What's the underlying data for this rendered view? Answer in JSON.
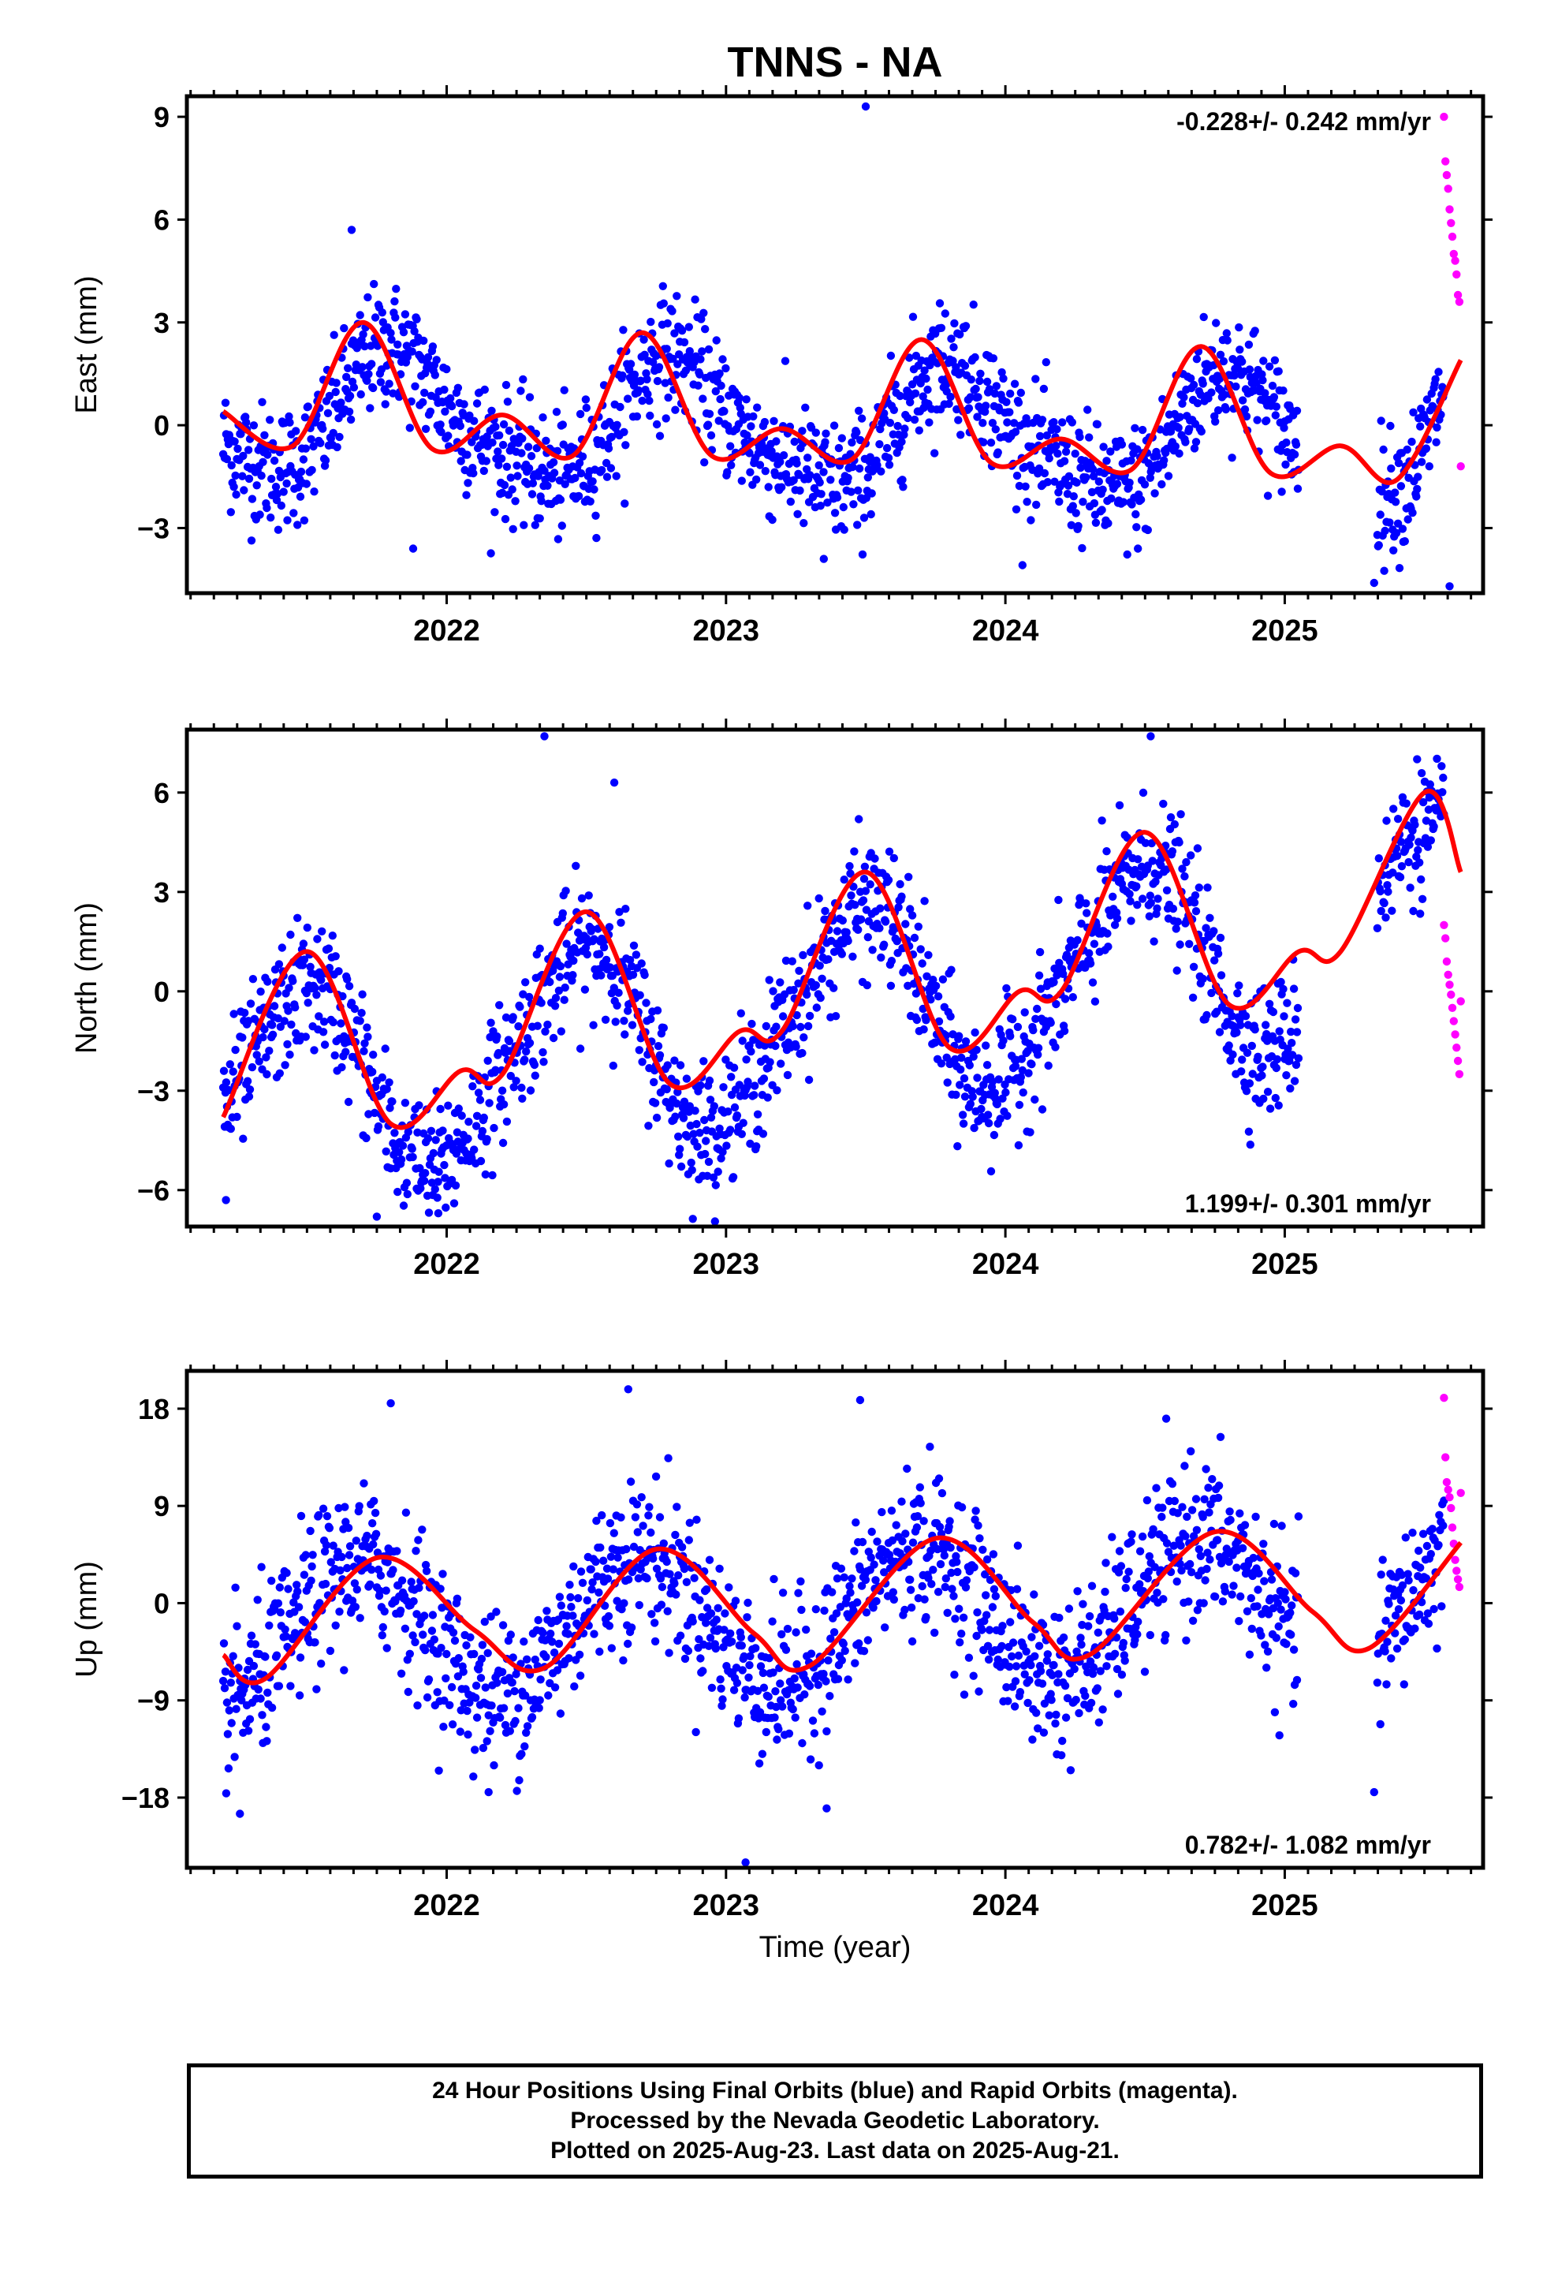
{
  "title": "TNNS - NA",
  "xlabel": "Time (year)",
  "year_ticks": [
    "2022",
    "2023",
    "2024",
    "2025"
  ],
  "colors": {
    "final": "#0000ff",
    "rapid": "#ff00ff",
    "model": "#ff0000",
    "frame": "#000000"
  },
  "footer": {
    "line1": "24 Hour Positions Using Final Orbits (blue) and Rapid Orbits (magenta).",
    "line2": "Processed by the Nevada Geodetic Laboratory.",
    "line3": "Plotted on 2025-Aug-23. Last data on 2025-Aug-21."
  },
  "chart_data": [
    {
      "type": "scatter",
      "ylabel": "East (mm)",
      "ylim": [
        -4.9,
        9.6
      ],
      "xlim": [
        2021.07,
        2025.71
      ],
      "yticks": [
        -3,
        0,
        3,
        6,
        9
      ],
      "rate_text": "-0.228+/- 0.242 mm/yr",
      "rate_position": "top-right",
      "final_range": [
        2021.2,
        2025.63
      ],
      "gap": [
        2025.05,
        2025.33
      ],
      "noise_sd": 0.9,
      "model": {
        "offset": -0.02,
        "rate": -0.228,
        "annual_cos": 0.76,
        "annual_sin": -1.56,
        "semi_cos": -0.4,
        "semi_sin": -0.05,
        "tail_start": 2025.3,
        "tail_amp": 3.2
      },
      "model_curve_x": [
        2021.2,
        2021.45,
        2021.7,
        2021.95,
        2022.2,
        2022.45,
        2022.7,
        2022.95,
        2023.2,
        2023.45,
        2023.7,
        2023.95,
        2024.2,
        2024.45,
        2024.7,
        2024.95,
        2025.2,
        2025.4,
        2025.63
      ],
      "model_curve_y": [
        0.4,
        -0.6,
        3.0,
        -0.7,
        0.3,
        -0.9,
        2.7,
        -0.9,
        -0.1,
        -1.0,
        2.5,
        -1.1,
        -0.4,
        -1.3,
        2.3,
        -1.4,
        -0.6,
        -1.6,
        1.9
      ],
      "rapid_x": [
        2025.57,
        2025.575,
        2025.58,
        2025.585,
        2025.59,
        2025.595,
        2025.6,
        2025.605,
        2025.61,
        2025.615,
        2025.62,
        2025.625,
        2025.63
      ],
      "rapid_y": [
        9.0,
        7.7,
        7.3,
        6.9,
        6.3,
        5.9,
        5.5,
        5.0,
        4.8,
        4.4,
        3.8,
        3.6,
        -1.2
      ],
      "outliers": [
        [
          2021.66,
          5.7
        ],
        [
          2023.5,
          9.3
        ],
        [
          2025.32,
          -4.6
        ],
        [
          2025.59,
          -4.7
        ],
        [
          2021.88,
          -3.6
        ],
        [
          2023.35,
          -3.9
        ]
      ]
    },
    {
      "type": "scatter",
      "ylabel": "North (mm)",
      "ylim": [
        -7.1,
        7.9
      ],
      "xlim": [
        2021.07,
        2025.71
      ],
      "yticks": [
        -6,
        -3,
        0,
        3,
        6
      ],
      "rate_text": "1.199+/- 0.301 mm/yr",
      "rate_position": "bottom-right",
      "final_range": [
        2021.2,
        2025.63
      ],
      "gap": [
        2025.05,
        2025.33
      ],
      "noise_sd": 1.0,
      "model": {
        "offset": -1.1,
        "rate": 1.199,
        "annual_cos": -2.9,
        "annual_sin": 0.5,
        "semi_cos": 0.15,
        "semi_sin": 0.35,
        "tail_start": 2025.9,
        "tail_amp": 0
      },
      "model_curve_x": [
        2021.2,
        2021.5,
        2021.8,
        2022.05,
        2022.2,
        2022.5,
        2022.8,
        2023.05,
        2023.2,
        2023.5,
        2023.8,
        2024.05,
        2024.2,
        2024.5,
        2024.8,
        2025.05,
        2025.2,
        2025.5,
        2025.63
      ],
      "model_curve_y": [
        -3.8,
        1.2,
        -4.0,
        -2.4,
        -2.5,
        2.4,
        -2.8,
        -1.2,
        -1.2,
        3.6,
        -1.7,
        0.0,
        0.0,
        4.8,
        -0.4,
        1.2,
        1.2,
        6.0,
        3.6
      ],
      "rapid_x": [
        2025.57,
        2025.575,
        2025.58,
        2025.585,
        2025.59,
        2025.595,
        2025.6,
        2025.605,
        2025.61,
        2025.615,
        2025.62,
        2025.625,
        2025.63
      ],
      "rapid_y": [
        2.0,
        1.6,
        0.9,
        0.5,
        0.2,
        -0.1,
        -0.5,
        -0.9,
        -1.3,
        -1.7,
        -2.1,
        -2.5,
        -0.3
      ],
      "outliers": [
        [
          2022.35,
          7.7
        ],
        [
          2024.52,
          7.7
        ],
        [
          2021.75,
          -6.8
        ],
        [
          2021.97,
          -6.7
        ],
        [
          2021.21,
          -6.3
        ],
        [
          2022.6,
          6.3
        ]
      ]
    },
    {
      "type": "scatter",
      "ylabel": "Up (mm)",
      "ylim": [
        -24.5,
        21.5
      ],
      "xlim": [
        2021.07,
        2025.71
      ],
      "yticks": [
        -18,
        -9,
        0,
        9,
        18
      ],
      "rate_text": "0.782+/- 1.082 mm/yr",
      "rate_position": "bottom-right",
      "final_range": [
        2021.2,
        2025.63
      ],
      "gap": [
        2025.05,
        2025.33
      ],
      "noise_sd": 3.6,
      "model": {
        "offset": -1.6,
        "rate": 0.782,
        "annual_cos": -2.2,
        "annual_sin": -5.8,
        "semi_cos": 0,
        "semi_sin": 0,
        "tail_start": 2025.9,
        "tail_amp": 0
      },
      "model_curve_x": [
        2021.2,
        2021.35,
        2021.75,
        2022.1,
        2022.35,
        2022.75,
        2023.1,
        2023.3,
        2023.75,
        2024.1,
        2024.3,
        2024.75,
        2025.1,
        2025.3,
        2025.63
      ],
      "model_curve_y": [
        -4.8,
        -7.0,
        4.2,
        -2.5,
        -6.0,
        5.0,
        -2.8,
        -5.8,
        6.0,
        -1.8,
        -4.8,
        6.6,
        -0.8,
        -4.2,
        5.6
      ],
      "rapid_x": [
        2025.57,
        2025.575,
        2025.58,
        2025.585,
        2025.59,
        2025.595,
        2025.6,
        2025.605,
        2025.61,
        2025.615,
        2025.62,
        2025.625,
        2025.63
      ],
      "rapid_y": [
        19.0,
        13.5,
        11.2,
        10.5,
        9.8,
        8.8,
        7.0,
        5.5,
        4.0,
        3.0,
        2.2,
        1.5,
        10.2
      ],
      "outliers": [
        [
          2022.65,
          19.8
        ],
        [
          2021.8,
          18.5
        ],
        [
          2023.48,
          18.8
        ],
        [
          2023.07,
          -24.0
        ],
        [
          2021.26,
          -19.5
        ],
        [
          2023.36,
          -19.0
        ],
        [
          2022.15,
          -17.5
        ],
        [
          2025.32,
          -17.5
        ]
      ]
    }
  ]
}
